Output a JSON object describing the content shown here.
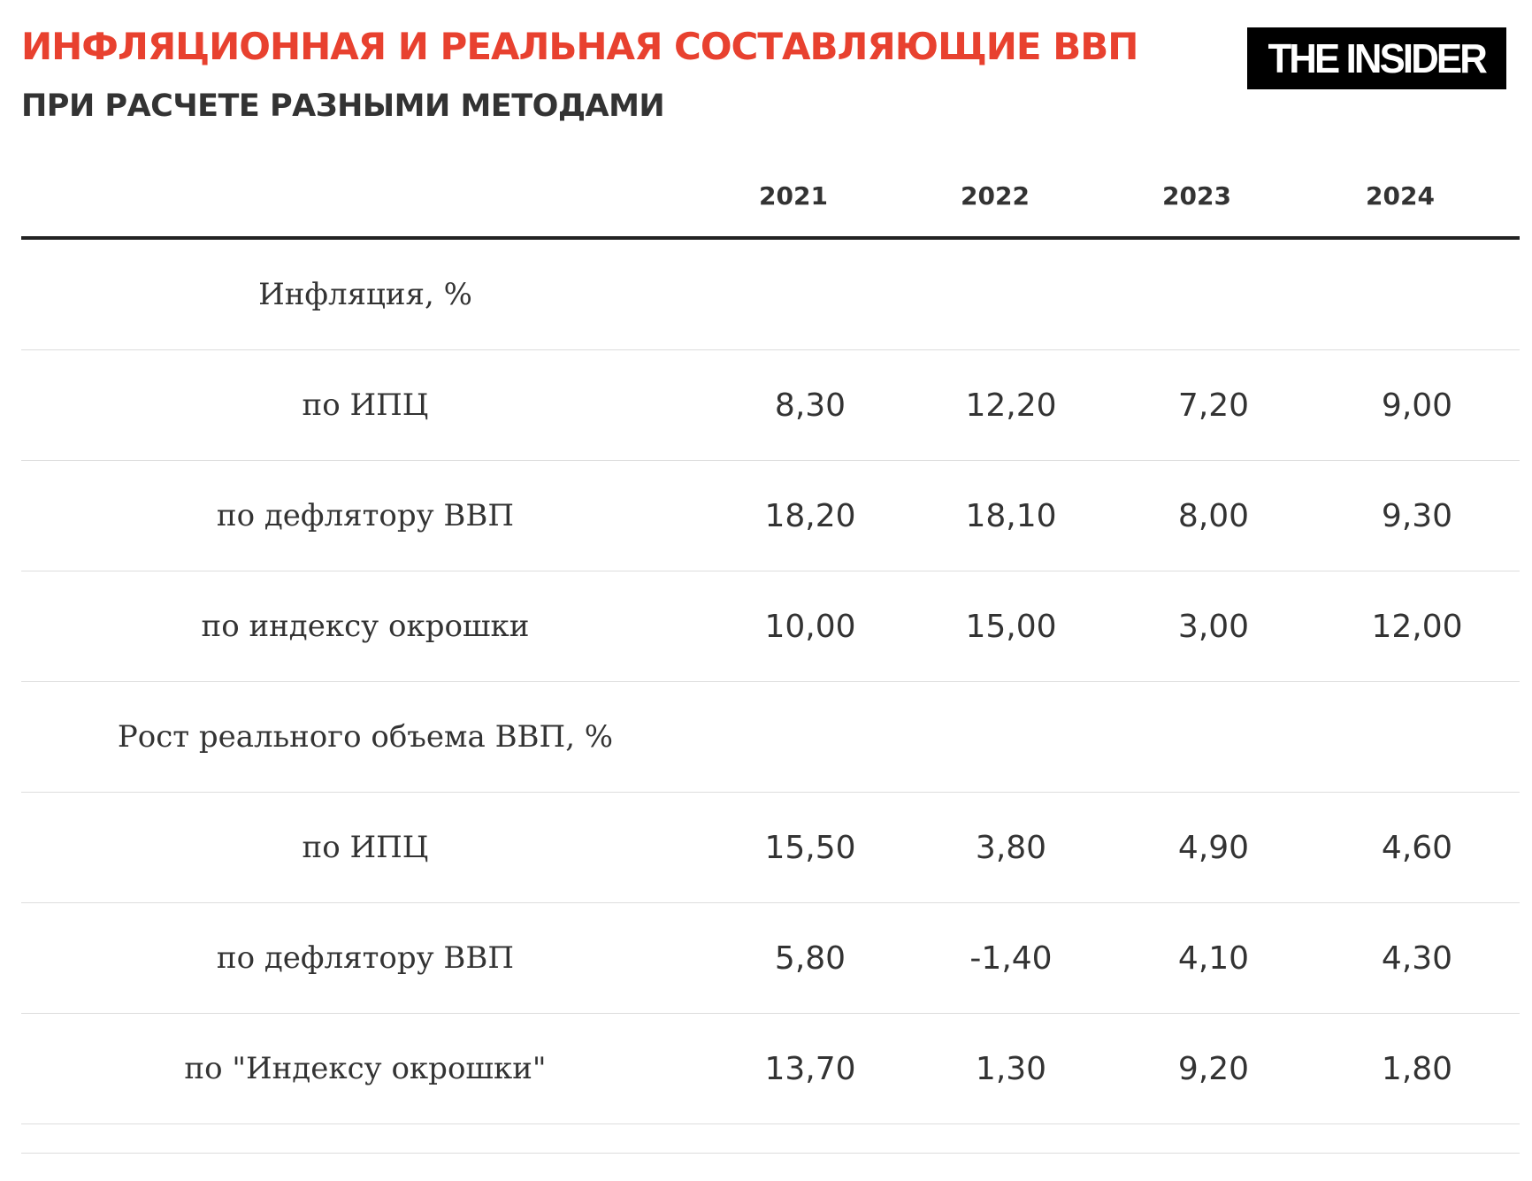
{
  "title": "ИНФЛЯЦИОННАЯ И РЕАЛЬНАЯ СОСТАВЛЯЮЩИЕ ВВП",
  "subtitle": "ПРИ РАСЧЕТЕ РАЗНЫМИ МЕТОДАМИ",
  "logo": "THE INSIDER",
  "colors": {
    "title": "#e8412f",
    "text": "#333333",
    "logo_bg": "#000000"
  },
  "table": {
    "headers": [
      "2021",
      "2022",
      "2023",
      "2024"
    ],
    "rows": [
      {
        "label": "Инфляция, %",
        "values": [
          "",
          "",
          "",
          ""
        ]
      },
      {
        "label": "по ИПЦ",
        "values": [
          "8,30",
          "12,20",
          "7,20",
          "9,00"
        ]
      },
      {
        "label": "по дефлятору ВВП",
        "values": [
          "18,20",
          "18,10",
          "8,00",
          "9,30"
        ]
      },
      {
        "label": "по индексу окрошки",
        "values": [
          "10,00",
          "15,00",
          "3,00",
          "12,00"
        ]
      },
      {
        "label": "Рост реального объема ВВП, %",
        "values": [
          "",
          "",
          "",
          ""
        ]
      },
      {
        "label": "по ИПЦ",
        "values": [
          "15,50",
          "3,80",
          "4,90",
          "4,60"
        ]
      },
      {
        "label": "по дефлятору ВВП",
        "values": [
          "5,80",
          "-1,40",
          "4,10",
          "4,30"
        ]
      },
      {
        "label": "по \"Индексу окрошки\"",
        "values": [
          "13,70",
          "1,30",
          "9,20",
          "1,80"
        ]
      }
    ]
  }
}
